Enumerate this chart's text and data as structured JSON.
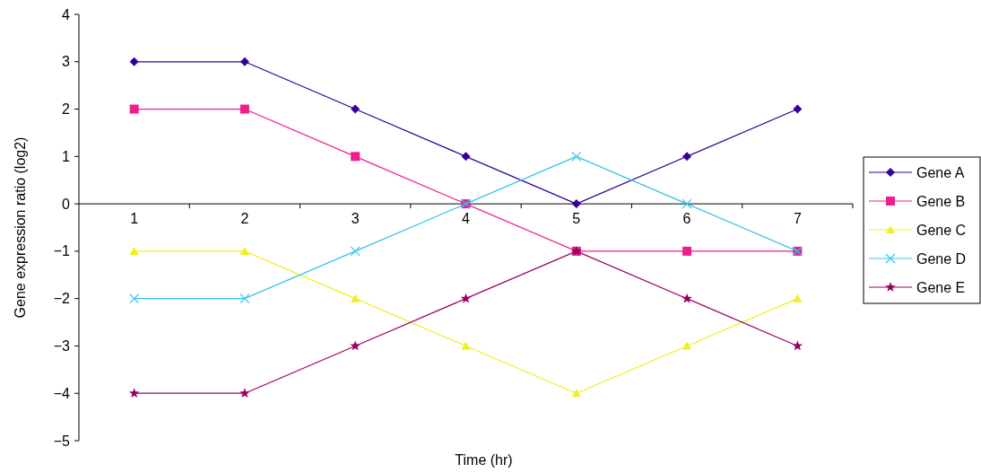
{
  "chart_data": {
    "type": "line",
    "xlabel": "Time (hr)",
    "ylabel": "Gene expression ratio (log2)",
    "categories": [
      "1",
      "2",
      "3",
      "4",
      "5",
      "6",
      "7"
    ],
    "ylim": [
      -5,
      4
    ],
    "yticks": [
      -5,
      -4,
      -3,
      -2,
      -1,
      0,
      1,
      2,
      3,
      4
    ],
    "grid": false,
    "legend": "right",
    "line_style": "solid",
    "series": [
      {
        "name": "Gene A",
        "color": "#330099",
        "marker": "diamond",
        "values": [
          3,
          3,
          2,
          1,
          0,
          1,
          2
        ]
      },
      {
        "name": "Gene B",
        "color": "#ee1f8c",
        "marker": "square",
        "values": [
          2,
          2,
          1,
          0,
          -1,
          -1,
          -1
        ]
      },
      {
        "name": "Gene C",
        "color": "#f2ee22",
        "marker": "triangle",
        "values": [
          -1,
          -1,
          -2,
          -3,
          -4,
          -3,
          -2
        ]
      },
      {
        "name": "Gene D",
        "color": "#33c3f0",
        "marker": "cross",
        "values": [
          -2,
          -2,
          -1,
          0,
          1,
          0,
          -1
        ]
      },
      {
        "name": "Gene E",
        "color": "#990066",
        "marker": "star",
        "values": [
          -4,
          -4,
          -3,
          -2,
          -1,
          -2,
          -3
        ]
      }
    ]
  }
}
